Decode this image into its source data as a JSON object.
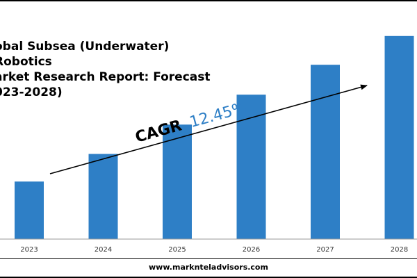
{
  "title": "obal Subsea (Underwater) Robotics\narket Research Report: Forecast\n023-2028)",
  "cagr": {
    "label": "CAGR",
    "value": "12.45%"
  },
  "website": "www.marknteladvisors.com",
  "colors": {
    "bar": "#2e7fc6",
    "cagr_value": "#2e7fc6",
    "text": "#000000"
  },
  "chart_data": {
    "type": "bar",
    "categories": [
      "2023",
      "2024",
      "2025",
      "2026",
      "2027",
      "2028"
    ],
    "values": [
      1.0,
      1.48,
      1.99,
      2.51,
      3.03,
      3.53
    ],
    "title": "obal Subsea (Underwater) Robotics Market Research Report: Forecast 023-2028)",
    "xlabel": "",
    "ylabel": "",
    "ylim": [
      0,
      3.6
    ],
    "grid": false,
    "legend": "none"
  }
}
